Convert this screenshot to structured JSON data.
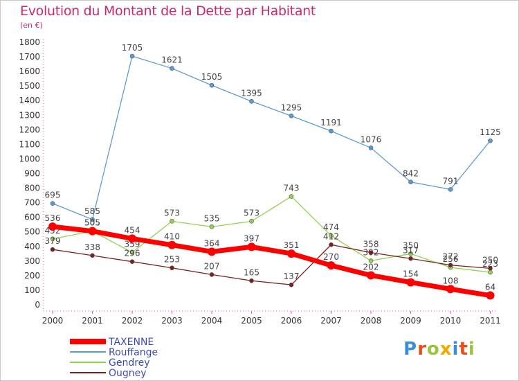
{
  "title": "Evolution du Montant de la Dette par Habitant",
  "unit": "(en €)",
  "logo": [
    "P",
    "r",
    "o",
    "x",
    "i",
    "t",
    "i"
  ],
  "chart_data": {
    "type": "line",
    "x": [
      "2000",
      "2001",
      "2002",
      "2003",
      "2004",
      "2005",
      "2006",
      "2007",
      "2008",
      "2009",
      "2010",
      "2011"
    ],
    "yticks": [
      "0",
      "100",
      "200",
      "300",
      "400",
      "500",
      "600",
      "700",
      "800",
      "900",
      "1000",
      "1100",
      "1200",
      "1300",
      "1400",
      "1500",
      "1600",
      "1700",
      "1800"
    ],
    "ylim": [
      0,
      1800
    ],
    "grid": false,
    "legend_position": "bottom-left",
    "series": [
      {
        "name": "Rouffange",
        "color": "#5b9bd5",
        "values": [
          695,
          585,
          1705,
          1621,
          1505,
          1395,
          1295,
          1191,
          1076,
          842,
          791,
          1125
        ]
      },
      {
        "name": "Gendrey",
        "color": "#8fd14f",
        "values": [
          452,
          505,
          359,
          573,
          535,
          573,
          743,
          474,
          302,
          350,
          256,
          223
        ]
      },
      {
        "name": "Ougney",
        "color": "#7b1f1f",
        "values": [
          379,
          338,
          296,
          253,
          207,
          165,
          137,
          412,
          358,
          317,
          272,
          250
        ]
      },
      {
        "name": "TAXENNE",
        "color": "#ff0000",
        "values": [
          536,
          505,
          454,
          410,
          364,
          397,
          351,
          270,
          202,
          154,
          108,
          64
        ]
      }
    ],
    "legend": [
      "TAXENNE",
      "Rouffange",
      "Gendrey",
      "Ougney"
    ]
  }
}
